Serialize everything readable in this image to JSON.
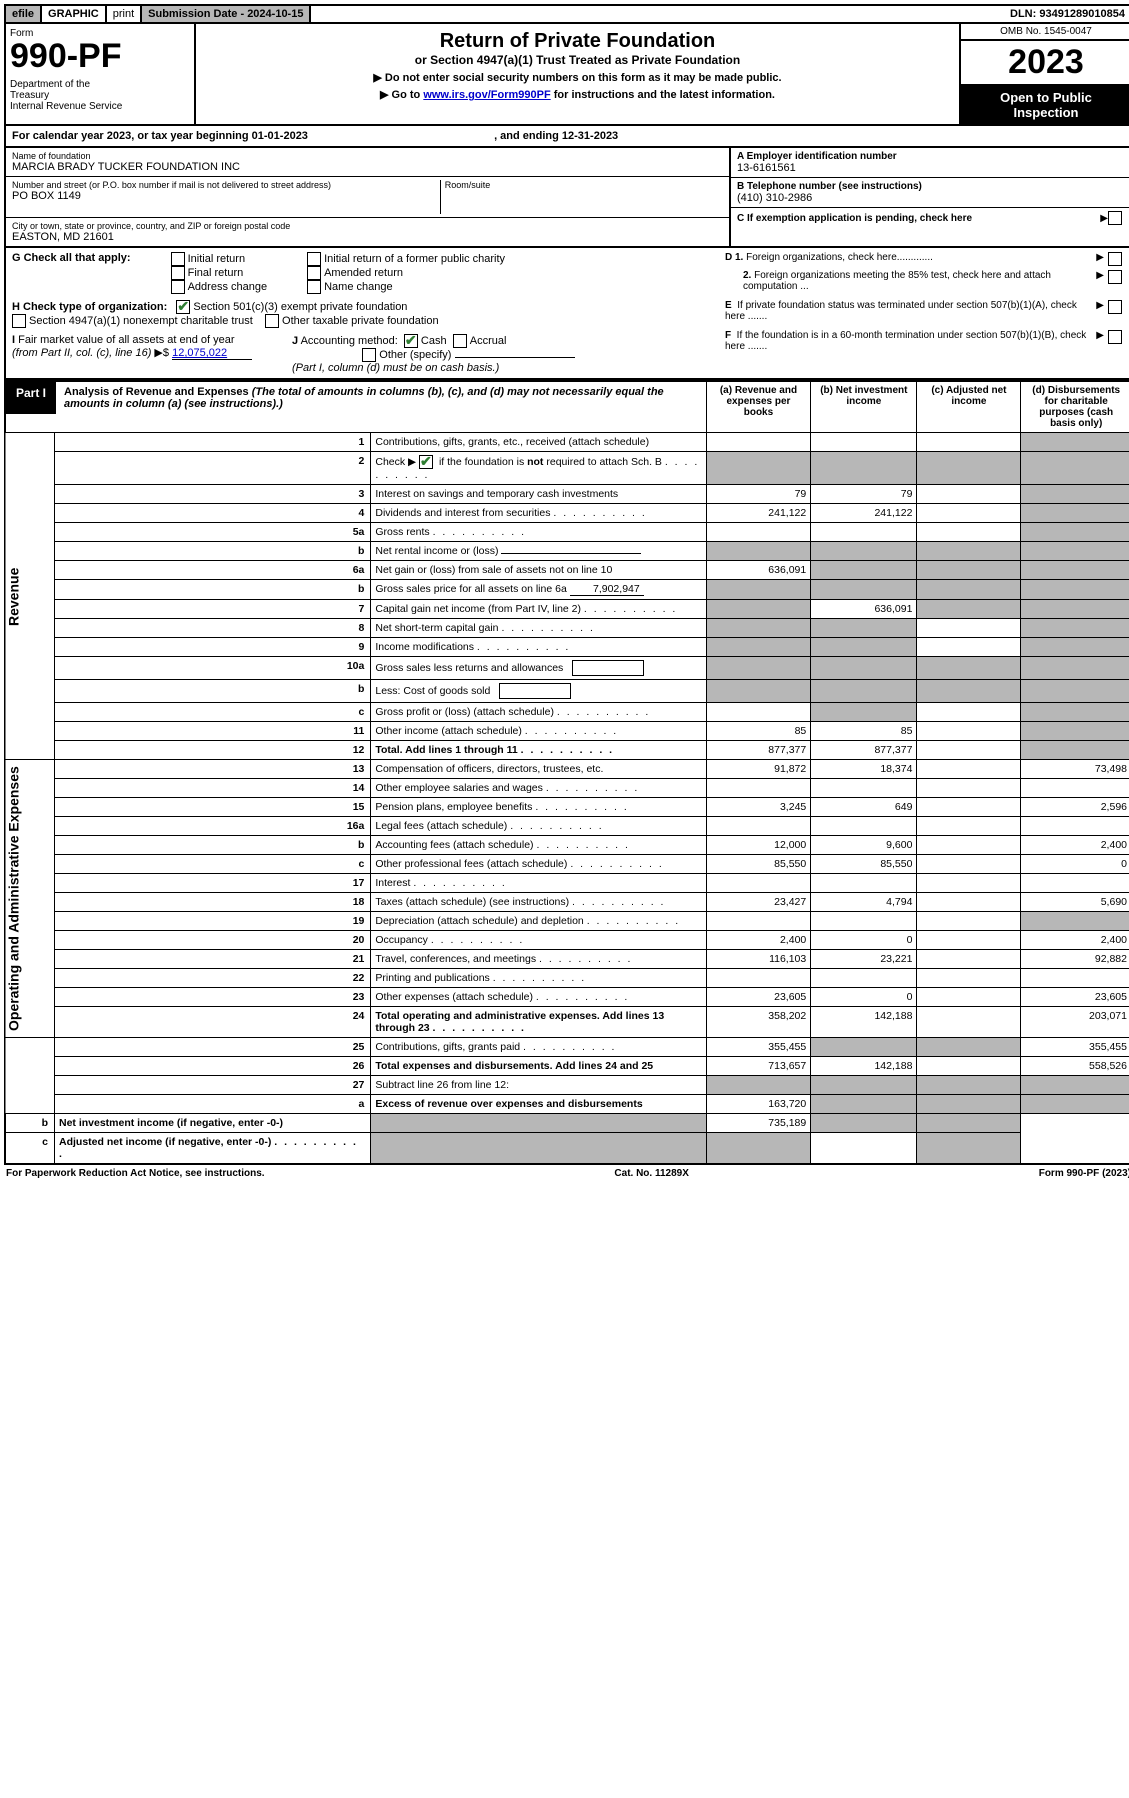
{
  "topbar": {
    "efile": "efile",
    "graphic": "GRAPHIC",
    "print": "print",
    "subdate_label": "Submission Date - ",
    "subdate": "2024-10-15",
    "dln_label": "DLN: ",
    "dln": "93491289010854"
  },
  "header": {
    "form_label": "Form",
    "form_num": "990-PF",
    "dept": "Department of the Treasury\nInternal Revenue Service",
    "title": "Return of Private Foundation",
    "subtitle": "or Section 4947(a)(1) Trust Treated as Private Foundation",
    "instr1": "▶ Do not enter social security numbers on this form as it may be made public.",
    "instr2_pre": "▶ Go to ",
    "instr2_link": "www.irs.gov/Form990PF",
    "instr2_post": " for instructions and the latest information.",
    "omb": "OMB No. 1545-0047",
    "year": "2023",
    "inspect": "Open to Public Inspection"
  },
  "calyear": {
    "text_pre": "For calendar year 2023, or tax year beginning ",
    "begin": "01-01-2023",
    "mid": " , and ending ",
    "end": "12-31-2023"
  },
  "info": {
    "name_label": "Name of foundation",
    "name": "MARCIA BRADY TUCKER FOUNDATION INC",
    "addr_label": "Number and street (or P.O. box number if mail is not delivered to street address)",
    "addr": "PO BOX 1149",
    "room_label": "Room/suite",
    "city_label": "City or town, state or province, country, and ZIP or foreign postal code",
    "city": "EASTON, MD  21601",
    "a_label": "A Employer identification number",
    "a_val": "13-6161561",
    "b_label": "B Telephone number (see instructions)",
    "b_val": "(410) 310-2986",
    "c_label": "C If exemption application is pending, check here",
    "d1_label": "D 1. Foreign organizations, check here.............",
    "d2_label": "2. Foreign organizations meeting the 85% test, check here and attach computation ...",
    "e_label": "E  If private foundation status was terminated under section 507(b)(1)(A), check here .......",
    "f_label": "F  If the foundation is in a 60-month termination under section 507(b)(1)(B), check here .......",
    "g_label": "G Check all that apply:",
    "g_opts": [
      "Initial return",
      "Final return",
      "Address change",
      "Initial return of a former public charity",
      "Amended return",
      "Name change"
    ],
    "h_label": "H Check type of organization:",
    "h_opts": [
      "Section 501(c)(3) exempt private foundation",
      "Section 4947(a)(1) nonexempt charitable trust",
      "Other taxable private foundation"
    ],
    "i_label": "I Fair market value of all assets at end of year (from Part II, col. (c), line 16)",
    "i_val": "12,075,022",
    "j_label": "J Accounting method:",
    "j_opts": [
      "Cash",
      "Accrual",
      "Other (specify)"
    ],
    "j_note": "(Part I, column (d) must be on cash basis.)"
  },
  "part1": {
    "label": "Part I",
    "title": "Analysis of Revenue and Expenses",
    "note": "(The total of amounts in columns (b), (c), and (d) may not necessarily equal the amounts in column (a) (see instructions).)",
    "cols": {
      "a": "(a)  Revenue and expenses per books",
      "b": "(b)  Net investment income",
      "c": "(c)  Adjusted net income",
      "d": "(d)  Disbursements for charitable purposes (cash basis only)"
    }
  },
  "side": {
    "rev": "Revenue",
    "exp": "Operating and Administrative Expenses"
  },
  "rows": [
    {
      "n": "1",
      "d": "Contributions, gifts, grants, etc., received (attach schedule)",
      "a": "",
      "b": "",
      "shade_d": true
    },
    {
      "n": "2",
      "d": "Check ▶ [✔] if the foundation is not required to attach Sch. B",
      "dots": true,
      "shade_b": true,
      "shade_d": true,
      "shade_a": true,
      "shade_c": true,
      "checkline": true
    },
    {
      "n": "3",
      "d": "Interest on savings and temporary cash investments",
      "a": "79",
      "b": "79",
      "shade_d": true
    },
    {
      "n": "4",
      "d": "Dividends and interest from securities",
      "dots": true,
      "a": "241,122",
      "b": "241,122",
      "shade_d": true
    },
    {
      "n": "5a",
      "d": "Gross rents",
      "dots": true,
      "shade_d": true
    },
    {
      "n": "b",
      "d": "Net rental income or (loss)",
      "underline": true,
      "shade_a": true,
      "shade_b": true,
      "shade_c": true,
      "shade_d": true
    },
    {
      "n": "6a",
      "d": "Net gain or (loss) from sale of assets not on line 10",
      "a": "636,091",
      "shade_b": true,
      "shade_c": true,
      "shade_d": true
    },
    {
      "n": "b",
      "d": "Gross sales price for all assets on line 6a",
      "inline_val": "7,902,947",
      "shade_a": true,
      "shade_b": true,
      "shade_c": true,
      "shade_d": true
    },
    {
      "n": "7",
      "d": "Capital gain net income (from Part IV, line 2)",
      "dots": true,
      "shade_a": true,
      "b": "636,091",
      "shade_c": true,
      "shade_d": true
    },
    {
      "n": "8",
      "d": "Net short-term capital gain",
      "dots": true,
      "shade_a": true,
      "shade_b": true,
      "shade_d": true
    },
    {
      "n": "9",
      "d": "Income modifications",
      "dots": true,
      "shade_a": true,
      "shade_b": true,
      "shade_d": true
    },
    {
      "n": "10a",
      "d": "Gross sales less returns and allowances",
      "box": true,
      "shade_a": true,
      "shade_b": true,
      "shade_c": true,
      "shade_d": true
    },
    {
      "n": "b",
      "d": "Less: Cost of goods sold",
      "dots": true,
      "box": true,
      "shade_a": true,
      "shade_b": true,
      "shade_c": true,
      "shade_d": true
    },
    {
      "n": "c",
      "d": "Gross profit or (loss) (attach schedule)",
      "dots": true,
      "shade_b": true,
      "shade_d": true
    },
    {
      "n": "11",
      "d": "Other income (attach schedule)",
      "dots": true,
      "a": "85",
      "b": "85",
      "shade_d": true
    },
    {
      "n": "12",
      "d": "Total. Add lines 1 through 11",
      "dots": true,
      "bold": true,
      "a": "877,377",
      "b": "877,377",
      "shade_d": true
    },
    {
      "n": "13",
      "d": "Compensation of officers, directors, trustees, etc.",
      "a": "91,872",
      "b": "18,374",
      "dd": "73,498",
      "sec": "exp"
    },
    {
      "n": "14",
      "d": "Other employee salaries and wages",
      "dots": true
    },
    {
      "n": "15",
      "d": "Pension plans, employee benefits",
      "dots": true,
      "a": "3,245",
      "b": "649",
      "dd": "2,596"
    },
    {
      "n": "16a",
      "d": "Legal fees (attach schedule)",
      "dots": true
    },
    {
      "n": "b",
      "d": "Accounting fees (attach schedule)",
      "dots": true,
      "a": "12,000",
      "b": "9,600",
      "dd": "2,400"
    },
    {
      "n": "c",
      "d": "Other professional fees (attach schedule)",
      "dots": true,
      "a": "85,550",
      "b": "85,550",
      "dd": "0"
    },
    {
      "n": "17",
      "d": "Interest",
      "dots": true
    },
    {
      "n": "18",
      "d": "Taxes (attach schedule) (see instructions)",
      "dots": true,
      "a": "23,427",
      "b": "4,794",
      "dd": "5,690"
    },
    {
      "n": "19",
      "d": "Depreciation (attach schedule) and depletion",
      "dots": true,
      "shade_d": true
    },
    {
      "n": "20",
      "d": "Occupancy",
      "dots": true,
      "a": "2,400",
      "b": "0",
      "dd": "2,400"
    },
    {
      "n": "21",
      "d": "Travel, conferences, and meetings",
      "dots": true,
      "a": "116,103",
      "b": "23,221",
      "dd": "92,882"
    },
    {
      "n": "22",
      "d": "Printing and publications",
      "dots": true
    },
    {
      "n": "23",
      "d": "Other expenses (attach schedule)",
      "dots": true,
      "a": "23,605",
      "b": "0",
      "dd": "23,605"
    },
    {
      "n": "24",
      "d": "Total operating and administrative expenses. Add lines 13 through 23",
      "dots": true,
      "bold": true,
      "a": "358,202",
      "b": "142,188",
      "dd": "203,071"
    },
    {
      "n": "25",
      "d": "Contributions, gifts, grants paid",
      "dots": true,
      "a": "355,455",
      "shade_b": true,
      "shade_c": true,
      "dd": "355,455"
    },
    {
      "n": "26",
      "d": "Total expenses and disbursements. Add lines 24 and 25",
      "bold": true,
      "a": "713,657",
      "b": "142,188",
      "dd": "558,526"
    },
    {
      "n": "27",
      "d": "Subtract line 26 from line 12:",
      "shade_a": true,
      "shade_b": true,
      "shade_c": true,
      "shade_d": true,
      "sec": "none"
    },
    {
      "n": "a",
      "d": "Excess of revenue over expenses and disbursements",
      "bold": true,
      "a": "163,720",
      "shade_b": true,
      "shade_c": true,
      "shade_d": true
    },
    {
      "n": "b",
      "d": "Net investment income (if negative, enter -0-)",
      "bold": true,
      "shade_a": true,
      "b": "735,189",
      "shade_c": true,
      "shade_d": true
    },
    {
      "n": "c",
      "d": "Adjusted net income (if negative, enter -0-)",
      "bold": true,
      "dots": true,
      "shade_a": true,
      "shade_b": true,
      "shade_d": true
    }
  ],
  "footer": {
    "left": "For Paperwork Reduction Act Notice, see instructions.",
    "mid": "Cat. No. 11289X",
    "right": "Form 990-PF (2023)"
  },
  "colors": {
    "shade": "#b7b7b7",
    "link": "#0000cc",
    "check": "#2e7d32"
  }
}
